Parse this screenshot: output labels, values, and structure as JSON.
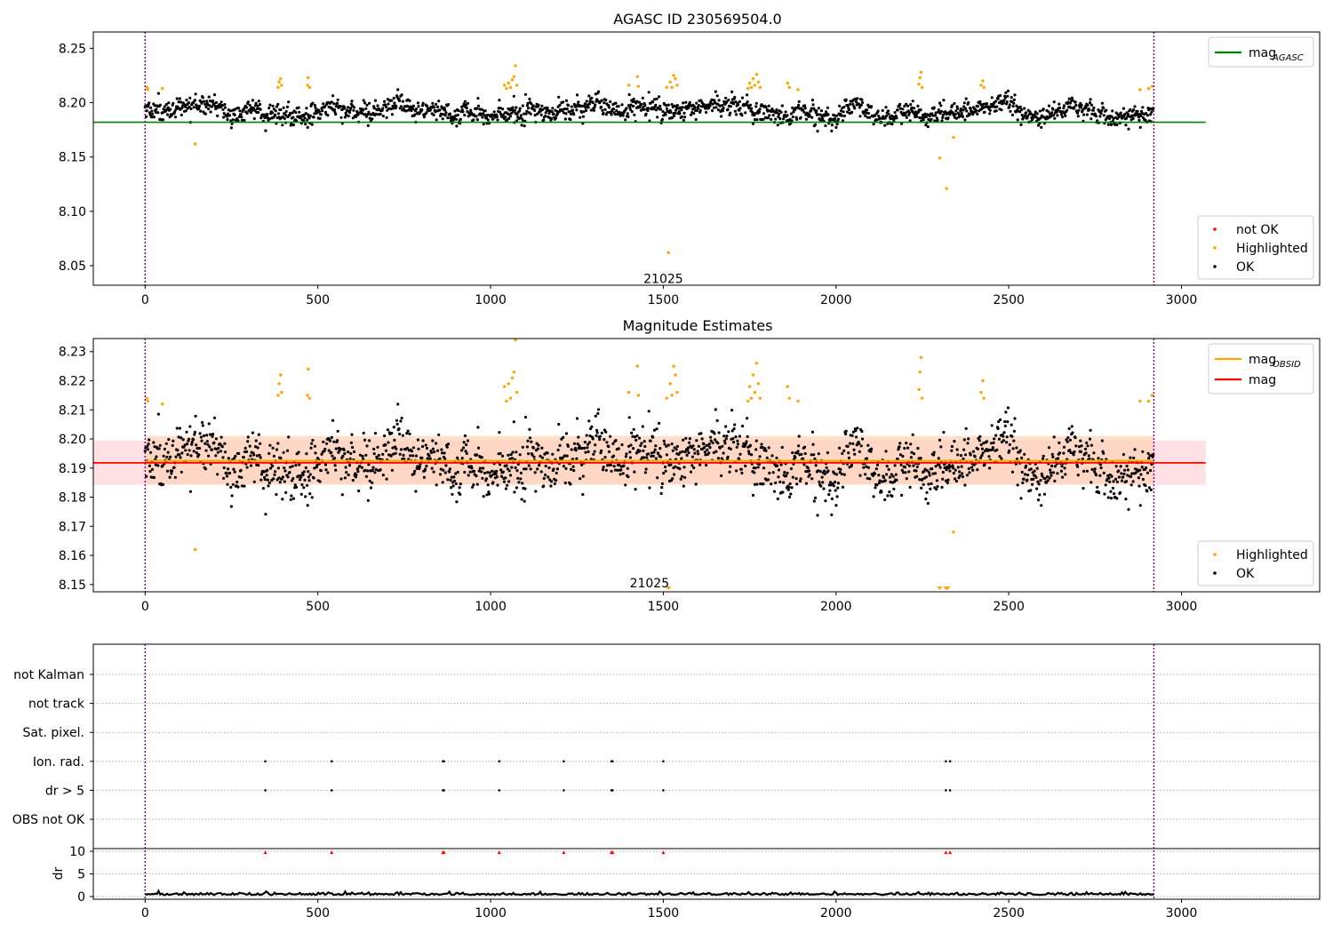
{
  "chart_data": [
    {
      "type": "scatter",
      "title": "AGASC ID 230569504.0",
      "xlim": [
        -150,
        3400
      ],
      "ylim": [
        8.032,
        8.265
      ],
      "xticks": [
        0,
        500,
        1000,
        1500,
        2000,
        2500,
        3000
      ],
      "yticks": [
        8.05,
        8.1,
        8.15,
        8.2,
        8.25
      ],
      "vlines": [
        0,
        2920
      ],
      "hline": {
        "name": "mag",
        "name_sub": "AGASC",
        "y": 8.182,
        "x_range": [
          -150,
          3070
        ],
        "color": "#008000"
      },
      "baseline": {
        "center": 8.192,
        "spread": 0.008
      },
      "annotation": {
        "text": "21025",
        "x": 1500,
        "y": 8.038
      },
      "legend_lines": [
        {
          "name": "mag",
          "sub": "AGASC",
          "color": "#008000"
        }
      ],
      "legend_points": [
        {
          "name": "not OK",
          "color": "#ff0000"
        },
        {
          "name": "Highlighted",
          "color": "#ffa500"
        },
        {
          "name": "OK",
          "color": "#000000"
        }
      ],
      "highlighted": [
        [
          5,
          8.214
        ],
        [
          8,
          8.212
        ],
        [
          50,
          8.213
        ],
        [
          145,
          8.162
        ],
        [
          385,
          8.214
        ],
        [
          388,
          8.219
        ],
        [
          392,
          8.222
        ],
        [
          395,
          8.216
        ],
        [
          470,
          8.216
        ],
        [
          472,
          8.223
        ],
        [
          476,
          8.214
        ],
        [
          1040,
          8.216
        ],
        [
          1046,
          8.213
        ],
        [
          1052,
          8.218
        ],
        [
          1058,
          8.214
        ],
        [
          1063,
          8.221
        ],
        [
          1068,
          8.224
        ],
        [
          1072,
          8.234
        ],
        [
          1076,
          8.216
        ],
        [
          1400,
          8.216
        ],
        [
          1425,
          8.224
        ],
        [
          1428,
          8.215
        ],
        [
          1510,
          8.214
        ],
        [
          1515,
          8.062
        ],
        [
          1520,
          8.219
        ],
        [
          1525,
          8.214
        ],
        [
          1530,
          8.225
        ],
        [
          1535,
          8.222
        ],
        [
          1540,
          8.216
        ],
        [
          1745,
          8.213
        ],
        [
          1750,
          8.218
        ],
        [
          1755,
          8.214
        ],
        [
          1760,
          8.222
        ],
        [
          1765,
          8.216
        ],
        [
          1770,
          8.226
        ],
        [
          1775,
          8.219
        ],
        [
          1780,
          8.214
        ],
        [
          1860,
          8.218
        ],
        [
          1865,
          8.214
        ],
        [
          1890,
          8.212
        ],
        [
          2240,
          8.217
        ],
        [
          2243,
          8.223
        ],
        [
          2246,
          8.228
        ],
        [
          2249,
          8.214
        ],
        [
          2300,
          8.149
        ],
        [
          2320,
          8.121
        ],
        [
          2340,
          8.168
        ],
        [
          2420,
          8.216
        ],
        [
          2425,
          8.22
        ],
        [
          2428,
          8.214
        ],
        [
          2880,
          8.212
        ],
        [
          2905,
          8.213
        ],
        [
          2915,
          8.215
        ]
      ],
      "notok": []
    },
    {
      "type": "scatter",
      "title": "Magnitude Estimates",
      "xlim": [
        -150,
        3400
      ],
      "ylim": [
        8.1475,
        8.2345
      ],
      "xticks": [
        0,
        500,
        1000,
        1500,
        2000,
        2500,
        3000
      ],
      "yticks": [
        8.15,
        8.16,
        8.17,
        8.18,
        8.19,
        8.2,
        8.21,
        8.22,
        8.23
      ],
      "vlines": [
        0,
        2920
      ],
      "mag_line": {
        "name": "mag",
        "y": 8.1918,
        "x_range": [
          -150,
          3070
        ],
        "band": [
          8.1842,
          8.1995
        ],
        "color": "#ff0000",
        "band_color": "#ffdde2"
      },
      "obsid_line": {
        "name": "mag",
        "sub": "OBSID",
        "y": 8.1925,
        "x_range": [
          0,
          2920
        ],
        "band": [
          8.1845,
          8.201
        ],
        "color": "#ffa500",
        "band_color": "#ffd4b8"
      },
      "baseline": {
        "center": 8.192,
        "spread": 0.008
      },
      "annotation": {
        "text": "21025",
        "x": 1460,
        "y": 8.1505
      },
      "legend_lines": [
        {
          "name": "mag",
          "sub": "OBSID",
          "color": "#ffa500"
        },
        {
          "name": "mag",
          "sub": "",
          "color": "#ff0000"
        }
      ],
      "legend_points": [
        {
          "name": "Highlighted",
          "color": "#ffa500"
        },
        {
          "name": "OK",
          "color": "#000000"
        }
      ],
      "highlighted": [
        [
          5,
          8.214
        ],
        [
          8,
          8.213
        ],
        [
          50,
          8.212
        ],
        [
          145,
          8.162
        ],
        [
          385,
          8.215
        ],
        [
          388,
          8.219
        ],
        [
          392,
          8.222
        ],
        [
          395,
          8.216
        ],
        [
          470,
          8.215
        ],
        [
          472,
          8.224
        ],
        [
          476,
          8.214
        ],
        [
          1040,
          8.218
        ],
        [
          1046,
          8.213
        ],
        [
          1052,
          8.219
        ],
        [
          1058,
          8.214
        ],
        [
          1063,
          8.221
        ],
        [
          1068,
          8.223
        ],
        [
          1072,
          8.234
        ],
        [
          1076,
          8.216
        ],
        [
          1400,
          8.216
        ],
        [
          1425,
          8.225
        ],
        [
          1428,
          8.215
        ],
        [
          1510,
          8.214
        ],
        [
          1520,
          8.219
        ],
        [
          1525,
          8.215
        ],
        [
          1530,
          8.225
        ],
        [
          1535,
          8.222
        ],
        [
          1540,
          8.216
        ],
        [
          1745,
          8.213
        ],
        [
          1750,
          8.218
        ],
        [
          1755,
          8.214
        ],
        [
          1760,
          8.222
        ],
        [
          1765,
          8.216
        ],
        [
          1770,
          8.226
        ],
        [
          1775,
          8.219
        ],
        [
          1780,
          8.214
        ],
        [
          1860,
          8.218
        ],
        [
          1865,
          8.214
        ],
        [
          1890,
          8.213
        ],
        [
          2240,
          8.217
        ],
        [
          2243,
          8.223
        ],
        [
          2246,
          8.228
        ],
        [
          2249,
          8.214
        ],
        [
          2340,
          8.168
        ],
        [
          2420,
          8.216
        ],
        [
          2425,
          8.22
        ],
        [
          2428,
          8.214
        ],
        [
          2880,
          8.213
        ],
        [
          2905,
          8.213
        ],
        [
          2915,
          8.215
        ]
      ],
      "clipped": [
        [
          1515,
          8.1475
        ],
        [
          2300,
          8.1475
        ],
        [
          2318,
          8.1475
        ],
        [
          2323,
          8.1475
        ]
      ]
    },
    {
      "type": "scatter",
      "title": "",
      "xlim": [
        -150,
        3400
      ],
      "xticks": [
        0,
        500,
        1000,
        1500,
        2000,
        2500,
        3000
      ],
      "vlines": [
        0,
        2920
      ],
      "flag_rows": [
        "not Kalman",
        "not track",
        "Sat. pixel.",
        "Ion. rad.",
        "dr > 5",
        "OBS not OK"
      ],
      "flag_x": [
        348,
        540,
        862,
        865,
        1025,
        1212,
        1350,
        1353,
        1500,
        2318,
        2330
      ],
      "flagged_rows": [
        "Ion. rad.",
        "dr > 5"
      ],
      "dr": {
        "ylabel": "dr",
        "yticks": [
          0,
          5,
          10
        ],
        "ylim": [
          -0.6,
          10.6
        ],
        "marker_y": 9.8,
        "marker_color": "#ff0000",
        "x_range": [
          0,
          2920
        ],
        "line_level": 0.35
      }
    }
  ]
}
